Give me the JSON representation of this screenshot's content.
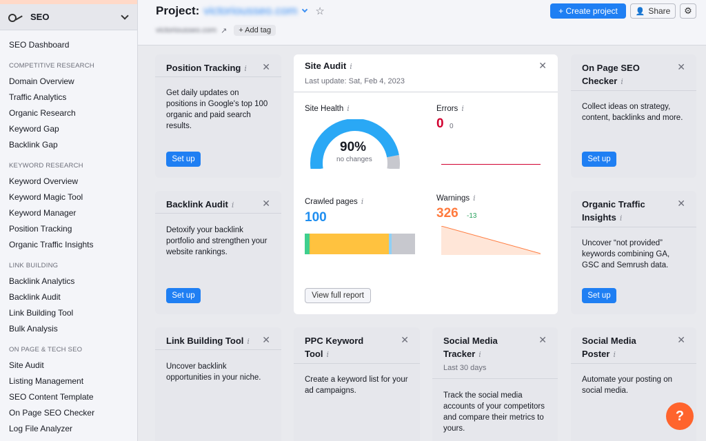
{
  "sidebar": {
    "title": "SEO",
    "dashboard": "SEO Dashboard",
    "sections": [
      {
        "heading": "COMPETITIVE RESEARCH",
        "items": [
          "Domain Overview",
          "Traffic Analytics",
          "Organic Research",
          "Keyword Gap",
          "Backlink Gap"
        ]
      },
      {
        "heading": "KEYWORD RESEARCH",
        "items": [
          "Keyword Overview",
          "Keyword Magic Tool",
          "Keyword Manager",
          "Position Tracking",
          "Organic Traffic Insights"
        ]
      },
      {
        "heading": "LINK BUILDING",
        "items": [
          "Backlink Analytics",
          "Backlink Audit",
          "Link Building Tool",
          "Bulk Analysis"
        ]
      },
      {
        "heading": "ON PAGE & TECH SEO",
        "items": [
          "Site Audit",
          "Listing Management",
          "SEO Content Template",
          "On Page SEO Checker",
          "Log File Analyzer"
        ]
      }
    ]
  },
  "header": {
    "project_label": "Project:",
    "project_domain": "victoriousseo.com",
    "domain_url": "victoriousseo.com",
    "add_tag": "+ Add tag",
    "create_project": "+ Create project",
    "share": "Share"
  },
  "cards": {
    "position_tracking": {
      "title": "Position Tracking",
      "desc": "Get daily updates on positions in Google's top 100 organic and paid search results.",
      "button": "Set up"
    },
    "backlink_audit": {
      "title": "Backlink Audit",
      "desc": "Detoxify your backlink portfolio and strengthen your website rankings.",
      "button": "Set up"
    },
    "link_building": {
      "title": "Link Building Tool",
      "desc": "Uncover backlink opportunities in your niche."
    },
    "ppc": {
      "title": "PPC Keyword Tool",
      "desc": "Create a keyword list for your ad campaigns."
    },
    "social_tracker": {
      "title": "Social Media Tracker",
      "subtitle": "Last 30 days",
      "desc": "Track the social media accounts of your competitors and compare their metrics to yours."
    },
    "on_page": {
      "title": "On Page SEO Checker",
      "desc": "Collect ideas on strategy, content, backlinks and more.",
      "button": "Set up"
    },
    "organic_traffic": {
      "title": "Organic Traffic Insights",
      "desc": "Uncover “not provided” keywords combining GA, GSC and Semrush data.",
      "button": "Set up"
    },
    "social_poster": {
      "title": "Social Media Poster",
      "desc": "Automate your posting on social media."
    }
  },
  "site_audit": {
    "title": "Site Audit",
    "last_update": "Last update: Sat, Feb 4, 2023",
    "site_health_label": "Site Health",
    "site_health_value": "90%",
    "site_health_fraction": 0.9,
    "site_health_note": "no changes",
    "errors_label": "Errors",
    "errors_value": "0",
    "errors_change": "0",
    "crawled_label": "Crawled pages",
    "crawled_value": "100",
    "warnings_label": "Warnings",
    "warnings_value": "326",
    "warnings_change": "-13",
    "view_report": "View full report",
    "colors": {
      "health": "#2aa8f5",
      "errors": "#d1002f",
      "warnings": "#ff7a3d",
      "crawled_green": "#3fcf8e",
      "crawled_yellow": "#ffc23f",
      "crawled_blue": "#8fd0f6",
      "crawled_gray": "#c7c8ce"
    }
  },
  "help_label": "?"
}
